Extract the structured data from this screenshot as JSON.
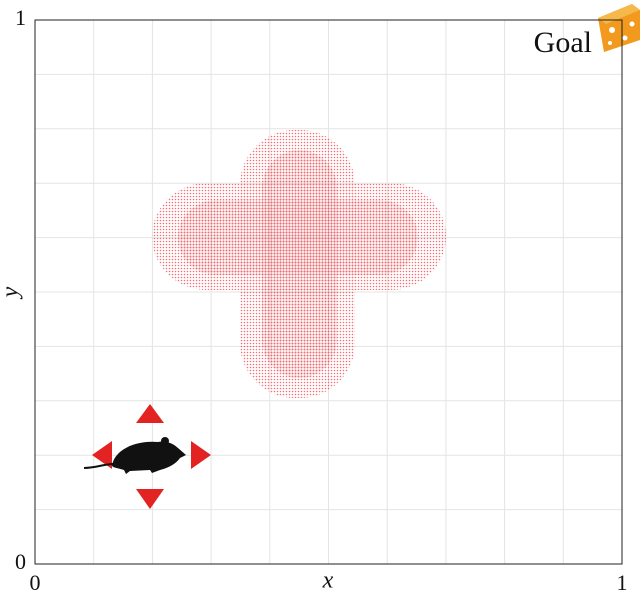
{
  "chart_data": {
    "type": "scatter",
    "xlabel": "x",
    "ylabel": "y",
    "xlim": [
      0,
      1
    ],
    "ylim": [
      0,
      1
    ],
    "xticks": [
      0,
      1
    ],
    "yticks": [
      0,
      1
    ],
    "xgrid": [
      0.1,
      0.2,
      0.3,
      0.4,
      0.5,
      0.6,
      0.7,
      0.8,
      0.9
    ],
    "ygrid": [
      0.1,
      0.2,
      0.3,
      0.4,
      0.5,
      0.6,
      0.7,
      0.8,
      0.9
    ],
    "grid": true,
    "annotations": [
      {
        "text": "Goal"
      }
    ]
  }
}
